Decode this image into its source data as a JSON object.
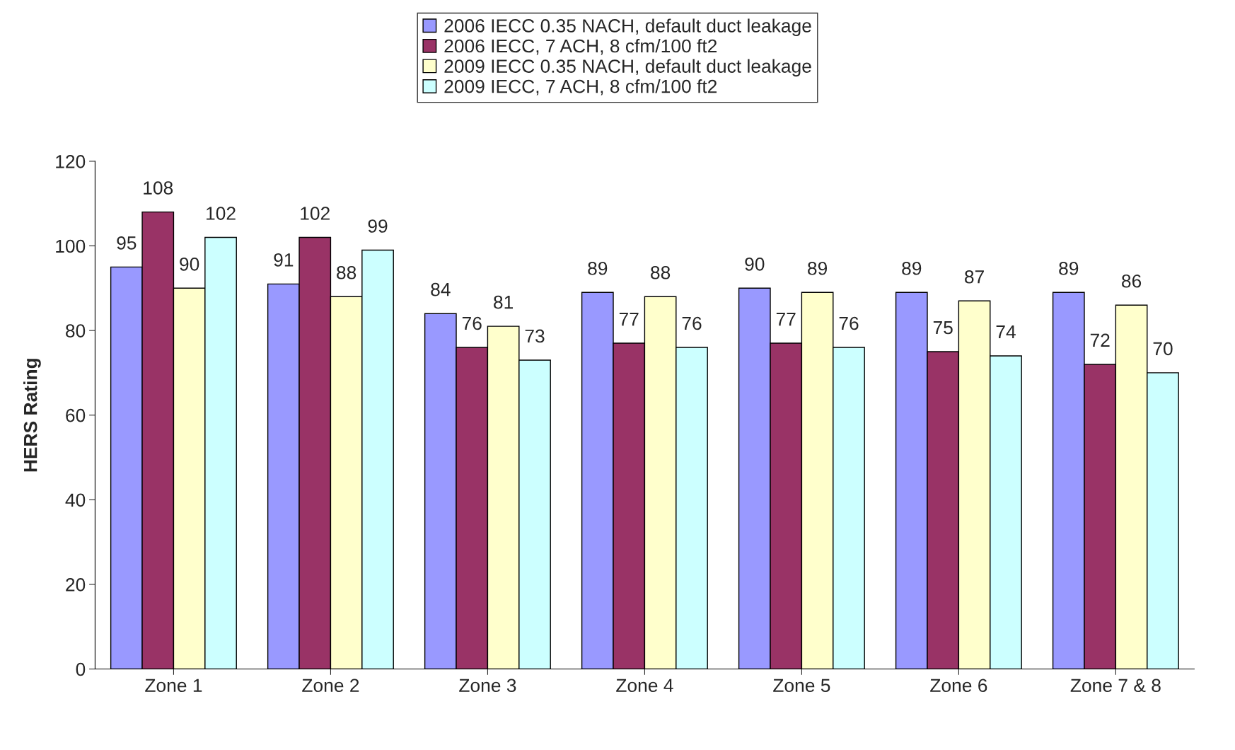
{
  "chart_data": {
    "type": "bar",
    "ylabel": "HERS Rating",
    "categories": [
      "Zone 1",
      "Zone 2",
      "Zone 3",
      "Zone 4",
      "Zone 5",
      "Zone 6",
      "Zone 7 & 8"
    ],
    "series": [
      {
        "name": "2006 IECC 0.35 NACH, default duct leakage",
        "color": "#9999ff",
        "values": [
          95,
          91,
          84,
          89,
          90,
          89,
          89
        ]
      },
      {
        "name": "2006 IECC, 7 ACH, 8 cfm/100 ft2",
        "color": "#993366",
        "values": [
          108,
          102,
          76,
          77,
          77,
          75,
          72
        ]
      },
      {
        "name": "2009 IECC 0.35 NACH, default duct leakage",
        "color": "#ffffcc",
        "values": [
          90,
          88,
          81,
          88,
          89,
          87,
          86
        ]
      },
      {
        "name": "2009 IECC, 7 ACH, 8 cfm/100 ft2",
        "color": "#ccffff",
        "values": [
          102,
          99,
          73,
          76,
          76,
          74,
          70
        ]
      }
    ],
    "ylim": [
      0,
      120
    ],
    "yticks": [
      0,
      20,
      40,
      60,
      80,
      100,
      120
    ],
    "data_labels": true,
    "grid": false,
    "legend": "top"
  }
}
